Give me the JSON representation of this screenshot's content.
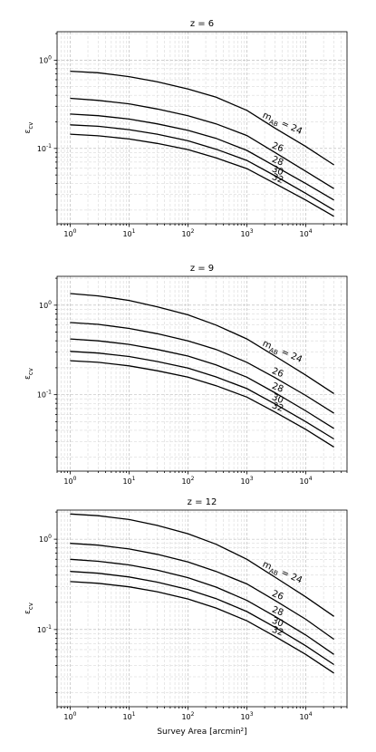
{
  "chart_data": [
    {
      "type": "line",
      "title": "z = 6",
      "xlabel": "",
      "ylabel": "ε_cv",
      "xscale": "log",
      "yscale": "log",
      "xlim": [
        0.6,
        50000
      ],
      "ylim": [
        0.014,
        2.1
      ],
      "grid": true,
      "x_ticks": [
        "10^0",
        "10^1",
        "10^2",
        "10^3",
        "10^4"
      ],
      "y_ticks": [
        "10^-1",
        "10^0"
      ],
      "x": [
        1,
        3,
        10,
        30,
        100,
        300,
        1000,
        3000,
        10000,
        30000
      ],
      "series": [
        {
          "name": "m_AB = 24",
          "values": [
            0.75,
            0.72,
            0.65,
            0.57,
            0.47,
            0.38,
            0.27,
            0.17,
            0.105,
            0.065
          ]
        },
        {
          "name": "26",
          "values": [
            0.37,
            0.35,
            0.32,
            0.28,
            0.235,
            0.19,
            0.14,
            0.09,
            0.055,
            0.035
          ]
        },
        {
          "name": "28",
          "values": [
            0.245,
            0.235,
            0.215,
            0.19,
            0.16,
            0.13,
            0.095,
            0.063,
            0.04,
            0.026
          ]
        },
        {
          "name": "30",
          "values": [
            0.185,
            0.178,
            0.163,
            0.145,
            0.122,
            0.098,
            0.073,
            0.049,
            0.031,
            0.02
          ]
        },
        {
          "name": "32",
          "values": [
            0.145,
            0.139,
            0.128,
            0.114,
            0.097,
            0.078,
            0.059,
            0.04,
            0.026,
            0.017
          ]
        }
      ],
      "curve_labels": [
        "m",
        "AB",
        " = 24",
        "26",
        "28",
        "30",
        "32"
      ]
    },
    {
      "type": "line",
      "title": "z = 9",
      "xlabel": "",
      "ylabel": "ε_cv",
      "xscale": "log",
      "yscale": "log",
      "xlim": [
        0.6,
        50000
      ],
      "ylim": [
        0.014,
        2.1
      ],
      "grid": true,
      "x_ticks": [
        "10^0",
        "10^1",
        "10^2",
        "10^3",
        "10^4"
      ],
      "y_ticks": [
        "10^-1",
        "10^0"
      ],
      "x": [
        1,
        3,
        10,
        30,
        100,
        300,
        1000,
        3000,
        10000,
        30000
      ],
      "series": [
        {
          "name": "m_AB = 24",
          "values": [
            1.35,
            1.27,
            1.13,
            0.96,
            0.78,
            0.6,
            0.42,
            0.27,
            0.165,
            0.103
          ]
        },
        {
          "name": "26",
          "values": [
            0.64,
            0.61,
            0.55,
            0.48,
            0.4,
            0.32,
            0.23,
            0.155,
            0.098,
            0.062
          ]
        },
        {
          "name": "28",
          "values": [
            0.42,
            0.4,
            0.365,
            0.32,
            0.27,
            0.215,
            0.157,
            0.105,
            0.066,
            0.042
          ]
        },
        {
          "name": "30",
          "values": [
            0.305,
            0.292,
            0.267,
            0.235,
            0.198,
            0.158,
            0.117,
            0.079,
            0.05,
            0.032
          ]
        },
        {
          "name": "32",
          "values": [
            0.24,
            0.23,
            0.21,
            0.185,
            0.157,
            0.126,
            0.094,
            0.064,
            0.041,
            0.026
          ]
        }
      ],
      "curve_labels": [
        "m",
        "AB",
        " = 24",
        "26",
        "28",
        "30",
        "32"
      ]
    },
    {
      "type": "line",
      "title": "z = 12",
      "xlabel": "Survey Area [arcmin²]",
      "ylabel": "ε_cv",
      "xscale": "log",
      "yscale": "log",
      "xlim": [
        0.6,
        50000
      ],
      "ylim": [
        0.014,
        2.1
      ],
      "grid": true,
      "x_ticks": [
        "10^0",
        "10^1",
        "10^2",
        "10^3",
        "10^4"
      ],
      "y_ticks": [
        "10^-1",
        "10^0"
      ],
      "x": [
        1,
        3,
        10,
        30,
        100,
        300,
        1000,
        3000,
        10000,
        30000
      ],
      "series": [
        {
          "name": "m_AB = 24",
          "values": [
            1.9,
            1.82,
            1.65,
            1.42,
            1.15,
            0.88,
            0.6,
            0.38,
            0.23,
            0.14
          ]
        },
        {
          "name": "26",
          "values": [
            0.9,
            0.86,
            0.78,
            0.68,
            0.56,
            0.44,
            0.32,
            0.21,
            0.13,
            0.078
          ]
        },
        {
          "name": "28",
          "values": [
            0.6,
            0.57,
            0.52,
            0.455,
            0.375,
            0.295,
            0.21,
            0.14,
            0.087,
            0.053
          ]
        },
        {
          "name": "30",
          "values": [
            0.44,
            0.42,
            0.382,
            0.335,
            0.278,
            0.22,
            0.158,
            0.106,
            0.066,
            0.041
          ]
        },
        {
          "name": "32",
          "values": [
            0.34,
            0.325,
            0.297,
            0.262,
            0.218,
            0.173,
            0.125,
            0.084,
            0.053,
            0.033
          ]
        }
      ],
      "curve_labels": [
        "m",
        "AB",
        " = 24",
        "26",
        "28",
        "30",
        "32"
      ]
    }
  ]
}
